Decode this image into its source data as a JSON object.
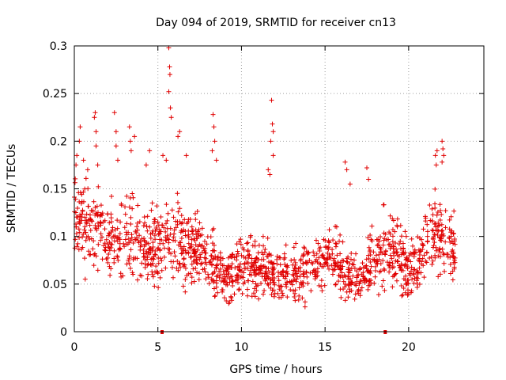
{
  "chart_data": {
    "type": "scatter",
    "title": "Day 094 of 2019, SRMTID for receiver cn13",
    "xlabel": "GPS time / hours",
    "ylabel": "SRMTID / TECUs",
    "xlim": [
      0,
      24.5
    ],
    "ylim": [
      0,
      0.3
    ],
    "x_ticks": [
      0,
      5,
      10,
      15,
      20
    ],
    "x_tick_labels": [
      "0",
      "5",
      "10",
      "15",
      "20"
    ],
    "y_ticks": [
      0,
      0.05,
      0.1,
      0.15,
      0.2,
      0.25,
      0.3
    ],
    "y_tick_labels": [
      "0",
      "0.05",
      "0.1",
      "0.15",
      "0.2",
      "0.25",
      "0.3"
    ],
    "grid": true,
    "marker": "+",
    "color": "#e00000",
    "baseline_markers_x": [
      5.25,
      18.6
    ],
    "series": [
      {
        "name": "SRMTID",
        "profile_x": [
          0,
          0.5,
          1,
          1.5,
          2,
          2.5,
          3,
          3.5,
          4,
          4.5,
          5,
          5.5,
          6,
          6.5,
          7,
          7.5,
          8,
          8.5,
          9,
          9.5,
          10,
          10.5,
          11,
          11.5,
          12,
          12.5,
          13,
          13.5,
          14,
          14.5,
          15,
          15.5,
          16,
          16.5,
          17,
          17.5,
          18,
          18.5,
          19,
          19.5,
          20,
          20.5,
          21,
          21.5,
          22,
          22.5,
          22.8
        ],
        "profile_center": [
          0.12,
          0.115,
          0.11,
          0.1,
          0.095,
          0.09,
          0.095,
          0.1,
          0.095,
          0.085,
          0.095,
          0.105,
          0.1,
          0.09,
          0.085,
          0.085,
          0.08,
          0.07,
          0.055,
          0.06,
          0.07,
          0.07,
          0.065,
          0.065,
          0.06,
          0.058,
          0.06,
          0.062,
          0.065,
          0.07,
          0.075,
          0.075,
          0.065,
          0.06,
          0.05,
          0.06,
          0.075,
          0.085,
          0.09,
          0.08,
          0.065,
          0.06,
          0.095,
          0.11,
          0.1,
          0.09,
          0.085
        ],
        "profile_spread": [
          0.03,
          0.03,
          0.028,
          0.028,
          0.026,
          0.025,
          0.028,
          0.03,
          0.026,
          0.025,
          0.027,
          0.03,
          0.03,
          0.028,
          0.026,
          0.026,
          0.025,
          0.022,
          0.02,
          0.02,
          0.022,
          0.022,
          0.02,
          0.02,
          0.018,
          0.018,
          0.018,
          0.02,
          0.02,
          0.02,
          0.02,
          0.02,
          0.02,
          0.018,
          0.016,
          0.02,
          0.022,
          0.025,
          0.025,
          0.022,
          0.02,
          0.02,
          0.025,
          0.025,
          0.025,
          0.022,
          0.02
        ],
        "outliers": [
          [
            0.1,
            0.175
          ],
          [
            0.15,
            0.185
          ],
          [
            0.3,
            0.2
          ],
          [
            0.35,
            0.215
          ],
          [
            0.55,
            0.18
          ],
          [
            0.8,
            0.17
          ],
          [
            1.2,
            0.225
          ],
          [
            1.25,
            0.23
          ],
          [
            1.3,
            0.21
          ],
          [
            1.3,
            0.195
          ],
          [
            1.4,
            0.175
          ],
          [
            2.4,
            0.23
          ],
          [
            2.5,
            0.21
          ],
          [
            2.5,
            0.195
          ],
          [
            2.6,
            0.18
          ],
          [
            3.3,
            0.215
          ],
          [
            3.35,
            0.2
          ],
          [
            3.4,
            0.19
          ],
          [
            3.6,
            0.205
          ],
          [
            4.3,
            0.175
          ],
          [
            4.5,
            0.19
          ],
          [
            5.3,
            0.185
          ],
          [
            5.5,
            0.18
          ],
          [
            5.65,
            0.298
          ],
          [
            5.7,
            0.278
          ],
          [
            5.72,
            0.27
          ],
          [
            5.65,
            0.252
          ],
          [
            5.75,
            0.235
          ],
          [
            5.8,
            0.225
          ],
          [
            6.2,
            0.205
          ],
          [
            6.3,
            0.21
          ],
          [
            6.7,
            0.185
          ],
          [
            8.3,
            0.228
          ],
          [
            8.35,
            0.215
          ],
          [
            8.4,
            0.2
          ],
          [
            8.25,
            0.19
          ],
          [
            8.5,
            0.18
          ],
          [
            11.8,
            0.243
          ],
          [
            11.85,
            0.218
          ],
          [
            11.9,
            0.21
          ],
          [
            11.75,
            0.2
          ],
          [
            11.9,
            0.185
          ],
          [
            11.6,
            0.17
          ],
          [
            11.7,
            0.165
          ],
          [
            16.2,
            0.178
          ],
          [
            16.3,
            0.17
          ],
          [
            16.5,
            0.155
          ],
          [
            17.5,
            0.172
          ],
          [
            17.6,
            0.16
          ],
          [
            21.6,
            0.185
          ],
          [
            21.7,
            0.19
          ],
          [
            21.65,
            0.175
          ],
          [
            22.0,
            0.2
          ],
          [
            22.05,
            0.192
          ],
          [
            22.1,
            0.185
          ],
          [
            22.0,
            0.178
          ]
        ]
      }
    ]
  }
}
